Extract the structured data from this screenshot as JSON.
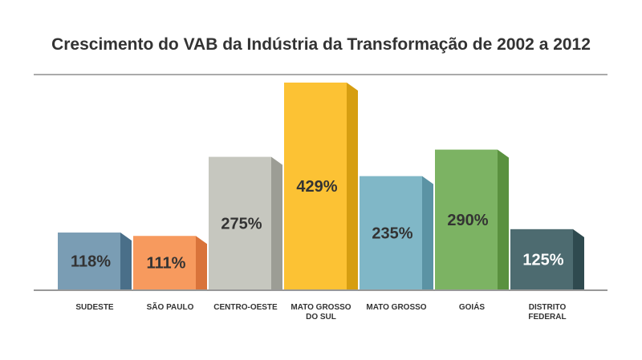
{
  "chart_data": {
    "type": "bar",
    "title": "Crescimento do VAB da Indústria da Transformação de 2002 a 2012",
    "categories": [
      "SUDESTE",
      "SÃO PAULO",
      "CENTRO-OESTE",
      "MATO GROSSO DO SUL",
      "MATO GROSSO",
      "GOIÁS",
      "DISTRITO FEDERAL"
    ],
    "category_lines": [
      [
        "SUDESTE"
      ],
      [
        "SÃO PAULO"
      ],
      [
        "CENTRO-OESTE"
      ],
      [
        "MATO GROSSO",
        "DO SUL"
      ],
      [
        "MATO GROSSO"
      ],
      [
        "GOIÁS"
      ],
      [
        "DISTRITO",
        "FEDERAL"
      ]
    ],
    "values": [
      118,
      111,
      275,
      429,
      235,
      290,
      125
    ],
    "value_labels": [
      "118%",
      "111%",
      "275%",
      "429%",
      "235%",
      "290%",
      "125%"
    ],
    "ylim": [
      0,
      429
    ],
    "grid": false,
    "colors": [
      {
        "front": "#7a9db4",
        "side": "#4a6f89"
      },
      {
        "front": "#f79a5e",
        "side": "#d9733a"
      },
      {
        "front": "#c6c7bf",
        "side": "#9c9d95"
      },
      {
        "front": "#fcc234",
        "side": "#d69e11"
      },
      {
        "front": "#80b7c7",
        "side": "#5b93a4"
      },
      {
        "front": "#7cb363",
        "side": "#5a913f"
      },
      {
        "front": "#4d6b70",
        "side": "#2f4a4f"
      }
    ],
    "label_colors": [
      "#333333",
      "#333333",
      "#333333",
      "#333333",
      "#333333",
      "#333333",
      "#ffffff"
    ]
  }
}
